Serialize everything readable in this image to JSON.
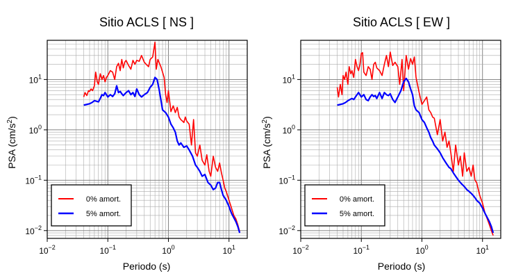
{
  "chart_data": [
    {
      "type": "line",
      "title": "Sitio ACLS [ NS ]",
      "xlabel": "Periodo (s)",
      "ylabel": "PSA (cm/s²)",
      "ylabel_parts": {
        "main": "PSA (cm/s",
        "sup": "2",
        "close": ")"
      },
      "xscale": "log",
      "yscale": "log",
      "xlim": [
        0.01,
        20
      ],
      "ylim": [
        0.007,
        60
      ],
      "grid": true,
      "legend_position": "bottom-left",
      "x_ticks": [
        {
          "v": 0.01,
          "base": "10",
          "exp": "−2"
        },
        {
          "v": 0.1,
          "base": "10",
          "exp": "−1"
        },
        {
          "v": 1,
          "base": "10",
          "exp": "0"
        },
        {
          "v": 10,
          "base": "10",
          "exp": "1"
        }
      ],
      "y_ticks": [
        {
          "v": 0.01,
          "base": "10",
          "exp": "−2"
        },
        {
          "v": 0.1,
          "base": "10",
          "exp": "−1"
        },
        {
          "v": 1,
          "base": "10",
          "exp": "0"
        },
        {
          "v": 10,
          "base": "10",
          "exp": "1"
        }
      ],
      "series": [
        {
          "name": "0% amort.",
          "color": "#ff0000",
          "x": [
            0.04,
            0.042,
            0.045,
            0.048,
            0.05,
            0.053,
            0.056,
            0.06,
            0.063,
            0.067,
            0.07,
            0.075,
            0.08,
            0.085,
            0.09,
            0.095,
            0.1,
            0.11,
            0.12,
            0.13,
            0.14,
            0.15,
            0.16,
            0.17,
            0.18,
            0.19,
            0.2,
            0.22,
            0.24,
            0.26,
            0.28,
            0.3,
            0.33,
            0.36,
            0.4,
            0.43,
            0.47,
            0.5,
            0.55,
            0.6,
            0.63,
            0.67,
            0.7,
            0.75,
            0.8,
            0.85,
            0.9,
            0.95,
            1.0,
            1.1,
            1.2,
            1.3,
            1.4,
            1.5,
            1.6,
            1.7,
            1.8,
            1.9,
            2.0,
            2.2,
            2.4,
            2.6,
            2.8,
            3.0,
            3.3,
            3.6,
            4.0,
            4.3,
            4.7,
            5.0,
            5.5,
            6.0,
            6.5,
            7.0,
            7.5,
            8.0,
            8.5,
            9.0,
            10.0,
            11.0,
            12.0,
            13.0,
            14.0,
            15.0
          ],
          "y": [
            4.5,
            5.5,
            4.8,
            6.0,
            5.8,
            6.5,
            6.0,
            7.5,
            14,
            9,
            8,
            13,
            10,
            12,
            9,
            11,
            12,
            15,
            14,
            10,
            18,
            21,
            15,
            25,
            17,
            22,
            24,
            19,
            16,
            24,
            20,
            24,
            23,
            30,
            22,
            20,
            18,
            25,
            28,
            55,
            16,
            25,
            22,
            18,
            14,
            11,
            5,
            3.5,
            6,
            2.3,
            3,
            2.2,
            2.8,
            1.8,
            1.6,
            1.5,
            1.4,
            1.8,
            1.5,
            1.3,
            0.5,
            1.6,
            0.35,
            0.3,
            0.5,
            0.25,
            0.2,
            0.32,
            0.15,
            0.12,
            0.3,
            0.18,
            0.15,
            0.22,
            0.14,
            0.1,
            0.07,
            0.06,
            0.04,
            0.028,
            0.02,
            0.017,
            0.013,
            0.0095
          ]
        },
        {
          "name": "5% amort.",
          "color": "#0000ff",
          "x": [
            0.04,
            0.045,
            0.05,
            0.055,
            0.06,
            0.065,
            0.07,
            0.075,
            0.08,
            0.085,
            0.09,
            0.1,
            0.11,
            0.12,
            0.13,
            0.14,
            0.15,
            0.16,
            0.17,
            0.18,
            0.2,
            0.22,
            0.24,
            0.26,
            0.28,
            0.3,
            0.33,
            0.36,
            0.4,
            0.45,
            0.5,
            0.55,
            0.6,
            0.65,
            0.7,
            0.75,
            0.8,
            0.9,
            1.0,
            1.1,
            1.2,
            1.3,
            1.4,
            1.5,
            1.6,
            1.8,
            2.0,
            2.2,
            2.5,
            2.8,
            3.0,
            3.3,
            3.6,
            4.0,
            4.5,
            5.0,
            5.5,
            6.0,
            6.5,
            7.0,
            7.5,
            8.0,
            9.0,
            10.0,
            11.0,
            12.0,
            13.0,
            14.0,
            15.0
          ],
          "y": [
            3.1,
            3.2,
            3.3,
            3.5,
            3.8,
            3.7,
            3.6,
            4.2,
            5.0,
            4.8,
            5.5,
            4.5,
            5.0,
            4.6,
            5.2,
            7.5,
            5.5,
            5.8,
            5.2,
            4.8,
            5.5,
            6.0,
            5.0,
            5.5,
            4.6,
            6.5,
            5.0,
            4.5,
            5.0,
            5.5,
            7.0,
            8.0,
            11.0,
            10.0,
            6.5,
            4.0,
            2.5,
            2.2,
            1.8,
            1.3,
            1.1,
            0.9,
            0.6,
            0.5,
            0.55,
            0.45,
            0.48,
            0.4,
            0.3,
            0.2,
            0.18,
            0.15,
            0.12,
            0.13,
            0.09,
            0.08,
            0.065,
            0.07,
            0.09,
            0.09,
            0.065,
            0.05,
            0.04,
            0.03,
            0.022,
            0.018,
            0.015,
            0.012,
            0.009
          ]
        }
      ]
    },
    {
      "type": "line",
      "title": "Sitio ACLS [ EW ]",
      "xlabel": "Periodo (s)",
      "ylabel": "PSA (cm/s²)",
      "ylabel_parts": {
        "main": "PSA (cm/s",
        "sup": "2",
        "close": ")"
      },
      "xscale": "log",
      "yscale": "log",
      "xlim": [
        0.01,
        20
      ],
      "ylim": [
        0.007,
        60
      ],
      "grid": true,
      "legend_position": "bottom-left",
      "x_ticks": [
        {
          "v": 0.01,
          "base": "10",
          "exp": "−2"
        },
        {
          "v": 0.1,
          "base": "10",
          "exp": "−1"
        },
        {
          "v": 1,
          "base": "10",
          "exp": "0"
        },
        {
          "v": 10,
          "base": "10",
          "exp": "1"
        }
      ],
      "y_ticks": [
        {
          "v": 0.01,
          "base": "10",
          "exp": "−2"
        },
        {
          "v": 0.1,
          "base": "10",
          "exp": "−1"
        },
        {
          "v": 1,
          "base": "10",
          "exp": "0"
        },
        {
          "v": 10,
          "base": "10",
          "exp": "1"
        }
      ],
      "series": [
        {
          "name": "0% amort.",
          "color": "#ff0000",
          "x": [
            0.04,
            0.042,
            0.045,
            0.048,
            0.05,
            0.053,
            0.056,
            0.06,
            0.063,
            0.067,
            0.07,
            0.075,
            0.08,
            0.085,
            0.09,
            0.095,
            0.1,
            0.105,
            0.11,
            0.12,
            0.13,
            0.14,
            0.15,
            0.16,
            0.17,
            0.18,
            0.2,
            0.22,
            0.24,
            0.26,
            0.28,
            0.3,
            0.33,
            0.36,
            0.4,
            0.43,
            0.47,
            0.5,
            0.55,
            0.6,
            0.65,
            0.7,
            0.75,
            0.8,
            0.9,
            1.0,
            1.1,
            1.2,
            1.3,
            1.4,
            1.5,
            1.6,
            1.8,
            2.0,
            2.2,
            2.4,
            2.6,
            2.8,
            3.0,
            3.3,
            3.6,
            4.0,
            4.3,
            4.7,
            5.0,
            5.5,
            6.0,
            6.5,
            7.0,
            7.5,
            8.0,
            9.0,
            10.0,
            11.0,
            12.0,
            13.0,
            14.0,
            15.0
          ],
          "y": [
            7,
            4.5,
            8,
            5,
            12,
            10,
            14,
            8,
            18,
            13,
            15,
            11,
            25,
            18,
            15,
            20,
            33,
            34,
            14,
            12,
            18,
            16,
            10,
            20,
            22,
            17,
            15,
            12,
            20,
            30,
            18,
            35,
            19,
            22,
            18,
            8,
            25,
            6,
            30,
            16,
            26,
            20,
            28,
            11,
            5.5,
            3.2,
            3.8,
            4.5,
            2.5,
            2.2,
            1.8,
            1.7,
            0.8,
            1.6,
            0.6,
            0.9,
            0.45,
            0.6,
            0.35,
            0.15,
            0.5,
            0.2,
            0.3,
            0.12,
            0.35,
            0.15,
            0.18,
            0.12,
            0.2,
            0.1,
            0.09,
            0.05,
            0.035,
            0.022,
            0.017,
            0.013,
            0.01,
            0.008
          ]
        },
        {
          "name": "5% amort.",
          "color": "#0000ff",
          "x": [
            0.04,
            0.045,
            0.05,
            0.055,
            0.06,
            0.065,
            0.07,
            0.075,
            0.08,
            0.085,
            0.09,
            0.1,
            0.11,
            0.12,
            0.13,
            0.14,
            0.15,
            0.16,
            0.17,
            0.18,
            0.2,
            0.22,
            0.24,
            0.26,
            0.28,
            0.3,
            0.33,
            0.36,
            0.4,
            0.45,
            0.5,
            0.55,
            0.6,
            0.65,
            0.7,
            0.75,
            0.8,
            0.9,
            1.0,
            1.1,
            1.2,
            1.3,
            1.4,
            1.5,
            1.6,
            1.8,
            2.0,
            2.2,
            2.5,
            2.8,
            3.0,
            3.3,
            3.6,
            4.0,
            4.5,
            5.0,
            5.5,
            6.0,
            6.5,
            7.0,
            7.5,
            8.0,
            9.0,
            10.0,
            11.0,
            12.0,
            13.0,
            14.0,
            15.0
          ],
          "y": [
            3.1,
            3.2,
            3.3,
            3.5,
            3.8,
            4.0,
            4.2,
            4.0,
            4.5,
            5.0,
            5.5,
            4.5,
            5.0,
            4.0,
            3.8,
            4.5,
            5.0,
            4.6,
            4.8,
            4.2,
            5.5,
            4.2,
            5.5,
            5.0,
            4.8,
            5.2,
            4.0,
            3.5,
            4.5,
            6.0,
            9.0,
            10.5,
            9.0,
            6.5,
            5.0,
            3.0,
            2.5,
            2.2,
            1.6,
            1.4,
            1.1,
            0.9,
            0.7,
            0.6,
            0.5,
            0.42,
            0.35,
            0.28,
            0.22,
            0.18,
            0.17,
            0.14,
            0.12,
            0.1,
            0.085,
            0.075,
            0.065,
            0.06,
            0.055,
            0.05,
            0.045,
            0.04,
            0.035,
            0.028,
            0.022,
            0.018,
            0.015,
            0.012,
            0.009
          ]
        }
      ]
    }
  ]
}
